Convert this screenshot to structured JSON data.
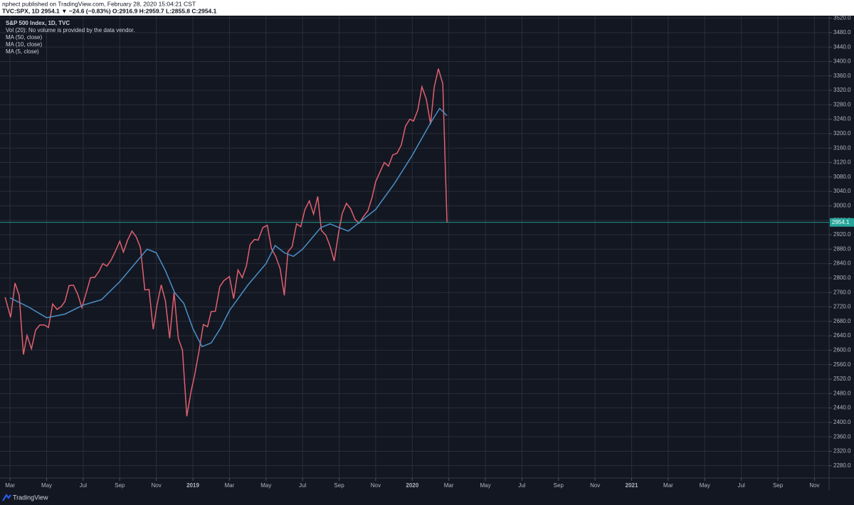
{
  "header": {
    "publisher": "nphect published on TradingView.com, February 28, 2020 15:04:21 CST",
    "quote": "TVC:SPX, 1D  2954.1 ▼ −24.6 (−0.83%) O:2916.9 H:2959.7 L:2855.8 C:2954.1"
  },
  "legend": [
    "S&P 500 Index, 1D, TVC",
    "Vol (20): No volume is provided by the data vendor.",
    "MA (50, close)",
    "MA (10, close)",
    "MA (5, close)"
  ],
  "footer": "TradingView",
  "chart_data": {
    "type": "line",
    "grid": true,
    "last_price": 2954.1,
    "last_price_color": "#26a69a",
    "xlim": [
      1.45,
      46.8
    ],
    "ylim": [
      2246,
      3527
    ],
    "xticks": [
      {
        "value": 2,
        "label": "Mar"
      },
      {
        "value": 4,
        "label": "May"
      },
      {
        "value": 6,
        "label": "Jul"
      },
      {
        "value": 8,
        "label": "Sep"
      },
      {
        "value": 10,
        "label": "Nov"
      },
      {
        "value": 12,
        "label": "2019"
      },
      {
        "value": 14,
        "label": "Mar"
      },
      {
        "value": 16,
        "label": "May"
      },
      {
        "value": 18,
        "label": "Jul"
      },
      {
        "value": 20,
        "label": "Sep"
      },
      {
        "value": 22,
        "label": "Nov"
      },
      {
        "value": 24,
        "label": "2020"
      },
      {
        "value": 26,
        "label": "Mar"
      },
      {
        "value": 28,
        "label": "May"
      },
      {
        "value": 30,
        "label": "Jul"
      },
      {
        "value": 32,
        "label": "Sep"
      },
      {
        "value": 34,
        "label": "Nov"
      },
      {
        "value": 36,
        "label": "2021"
      },
      {
        "value": 38,
        "label": "Mar"
      },
      {
        "value": 40,
        "label": "May"
      },
      {
        "value": 42,
        "label": "Jul"
      },
      {
        "value": 44,
        "label": "Sep"
      },
      {
        "value": 46,
        "label": "Nov"
      }
    ],
    "yticks": [
      {
        "value": 2280,
        "label": "2280.0"
      },
      {
        "value": 2320,
        "label": "2320.0"
      },
      {
        "value": 2360,
        "label": "2360.0"
      },
      {
        "value": 2400,
        "label": "2400.0"
      },
      {
        "value": 2440,
        "label": "2440.0"
      },
      {
        "value": 2480,
        "label": "2480.0"
      },
      {
        "value": 2520,
        "label": "2520.0"
      },
      {
        "value": 2560,
        "label": "2560.0"
      },
      {
        "value": 2600,
        "label": "2600.0"
      },
      {
        "value": 2640,
        "label": "2640.0"
      },
      {
        "value": 2680,
        "label": "2680.0"
      },
      {
        "value": 2720,
        "label": "2720.0"
      },
      {
        "value": 2760,
        "label": "2760.0"
      },
      {
        "value": 2800,
        "label": "2800.0"
      },
      {
        "value": 2840,
        "label": "2840.0"
      },
      {
        "value": 2880,
        "label": "2880.0"
      },
      {
        "value": 2920,
        "label": "2920.0"
      },
      {
        "value": 2960,
        "label": "2960.0"
      },
      {
        "value": 3000,
        "label": "3000.0"
      },
      {
        "value": 3040,
        "label": "3040.0"
      },
      {
        "value": 3080,
        "label": "3080.0"
      },
      {
        "value": 3120,
        "label": "3120.0"
      },
      {
        "value": 3160,
        "label": "3160.0"
      },
      {
        "value": 3200,
        "label": "3200.0"
      },
      {
        "value": 3240,
        "label": "3240.0"
      },
      {
        "value": 3280,
        "label": "3280.0"
      },
      {
        "value": 3320,
        "label": "3320.0"
      },
      {
        "value": 3360,
        "label": "3360.0"
      },
      {
        "value": 3400,
        "label": "3400.0"
      },
      {
        "value": 3440,
        "label": "3440.0"
      },
      {
        "value": 3480,
        "label": "3480.0"
      },
      {
        "value": 3520,
        "label": "3520.0"
      }
    ],
    "series": [
      {
        "color": "#e0606e",
        "x": [
          1.73,
          2.03,
          2.27,
          2.5,
          2.73,
          2.93,
          3.17,
          3.4,
          3.63,
          3.87,
          4.1,
          4.33,
          4.57,
          4.8,
          5.0,
          5.23,
          5.47,
          5.7,
          5.93,
          6.17,
          6.4,
          6.63,
          6.87,
          7.07,
          7.3,
          7.53,
          7.77,
          8.0,
          8.2,
          8.43,
          8.67,
          8.9,
          9.13,
          9.37,
          9.6,
          9.83,
          10.03,
          10.27,
          10.5,
          10.73,
          10.97,
          11.2,
          11.43,
          11.67,
          11.9,
          12.1,
          12.33,
          12.57,
          12.8,
          13.0,
          13.23,
          13.47,
          13.7,
          14.0,
          14.23,
          14.47,
          14.7,
          14.93,
          15.13,
          15.37,
          15.57,
          15.83,
          16.07,
          16.3,
          16.53,
          16.77,
          17.0,
          17.2,
          17.43,
          17.67,
          17.9,
          18.13,
          18.37,
          18.6,
          18.83,
          19.03,
          19.27,
          19.5,
          19.73,
          19.97,
          20.17,
          20.4,
          20.63,
          20.87,
          21.1,
          21.33,
          21.57,
          21.8,
          22.0,
          22.23,
          22.47,
          22.7,
          22.93,
          23.17,
          23.4,
          23.63,
          23.87,
          24.07,
          24.3,
          24.53,
          24.77,
          25.0,
          25.2,
          25.43,
          25.67,
          25.9
        ],
        "values": [
          2747,
          2691,
          2786,
          2752,
          2588,
          2641,
          2604,
          2656,
          2670,
          2670,
          2663,
          2728,
          2713,
          2721,
          2735,
          2779,
          2780,
          2755,
          2718,
          2760,
          2801,
          2802,
          2819,
          2840,
          2833,
          2850,
          2875,
          2902,
          2872,
          2905,
          2930,
          2914,
          2885,
          2767,
          2768,
          2658,
          2723,
          2781,
          2736,
          2633,
          2760,
          2633,
          2600,
          2417,
          2486,
          2532,
          2596,
          2671,
          2665,
          2707,
          2708,
          2776,
          2793,
          2804,
          2743,
          2822,
          2801,
          2834,
          2893,
          2907,
          2905,
          2940,
          2946,
          2881,
          2860,
          2826,
          2752,
          2873,
          2887,
          2950,
          2942,
          2990,
          3014,
          2977,
          3026,
          2932,
          2919,
          2889,
          2847,
          2926,
          2979,
          3007,
          2992,
          2962,
          2952,
          2970,
          2986,
          3023,
          3067,
          3093,
          3120,
          3110,
          3141,
          3146,
          3169,
          3221,
          3240,
          3235,
          3265,
          3330,
          3295,
          3226,
          3328,
          3380,
          3338,
          2954
        ]
      },
      {
        "color": "#4a90c9",
        "x": [
          2,
          3,
          4,
          5,
          6,
          7,
          8,
          9,
          9.5,
          10,
          10.5,
          11,
          11.5,
          12,
          12.5,
          13,
          13.5,
          14,
          15,
          16,
          16.5,
          17,
          17.5,
          18,
          19,
          19.5,
          20,
          20.5,
          21,
          22,
          23,
          24,
          25,
          25.5,
          25.9
        ],
        "values": [
          2745,
          2720,
          2690,
          2700,
          2725,
          2740,
          2790,
          2850,
          2880,
          2870,
          2820,
          2760,
          2730,
          2660,
          2610,
          2620,
          2660,
          2710,
          2780,
          2840,
          2890,
          2870,
          2860,
          2880,
          2940,
          2950,
          2940,
          2930,
          2950,
          2990,
          3060,
          3140,
          3230,
          3270,
          3250
        ]
      }
    ]
  }
}
